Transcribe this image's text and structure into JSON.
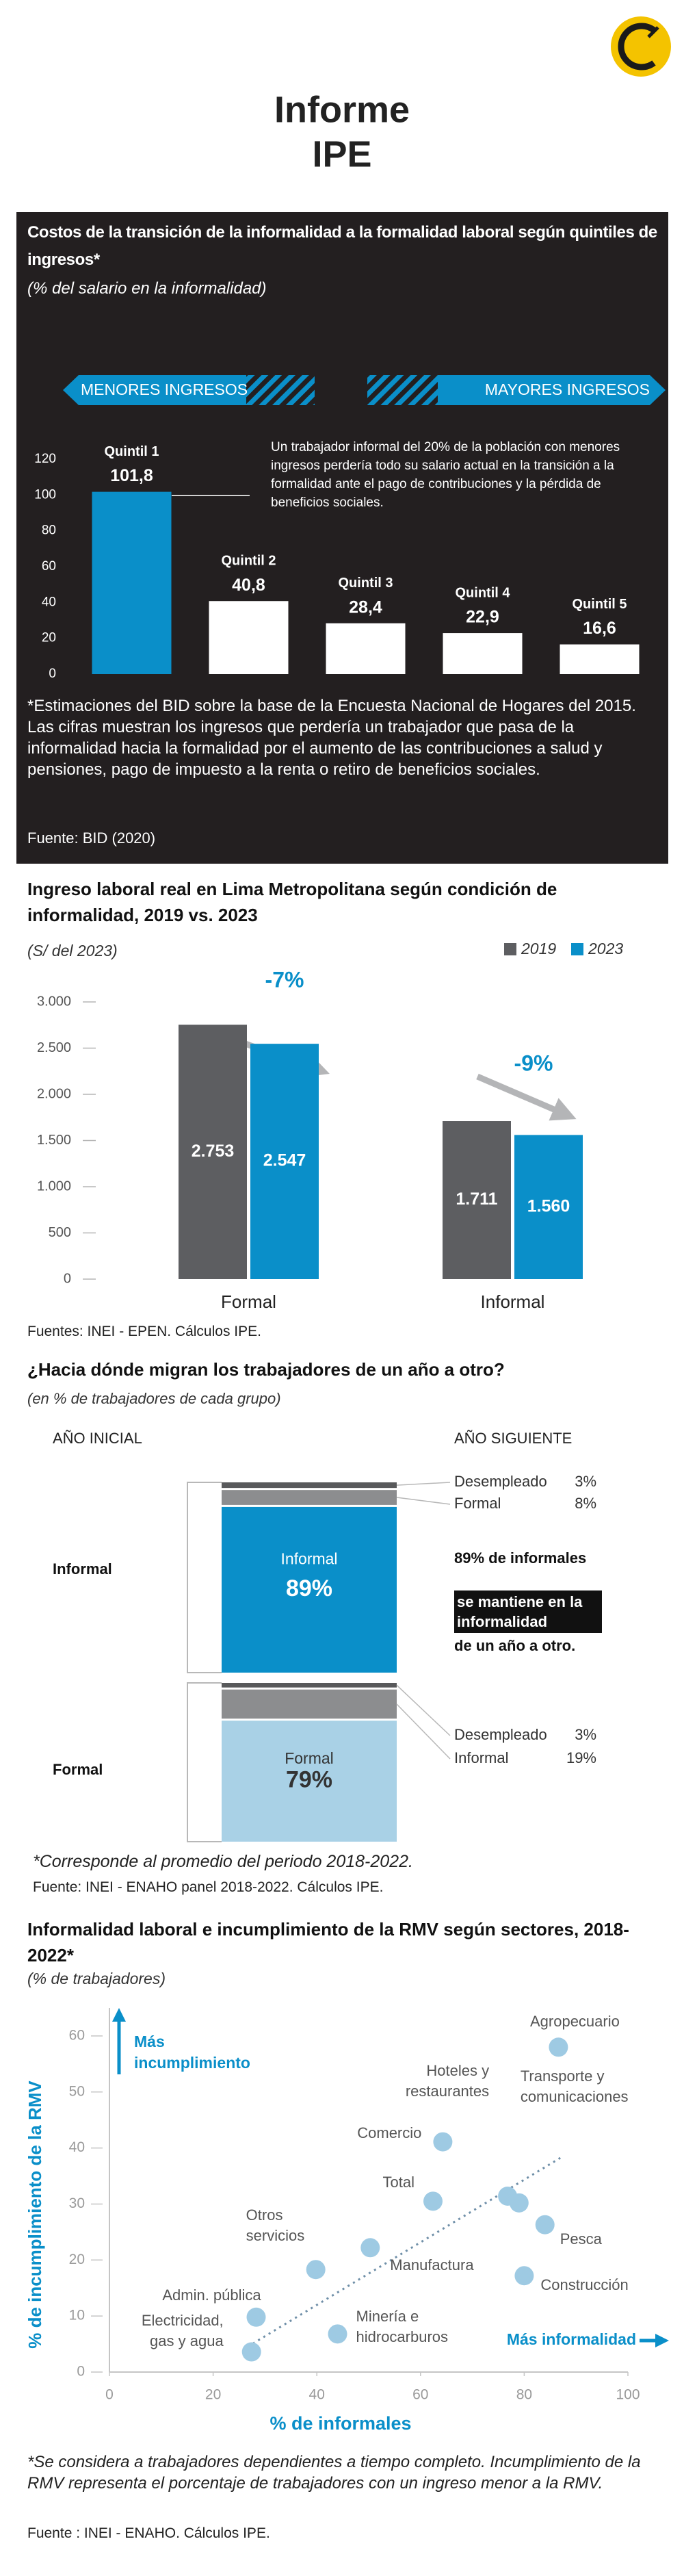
{
  "header": {
    "title_lines": [
      "Informe",
      "IPE"
    ]
  },
  "chart_data": [
    {
      "type": "bar",
      "title": "Costos de la transición de la informalidad a la formalidad laboral según quintiles de ingresos*",
      "subtitle": "(% del salario en la informalidad)",
      "arrow_labels": [
        "MENORES INGRESOS",
        "MAYORES INGRESOS"
      ],
      "categories": [
        "Quintil 1",
        "Quintil 2",
        "Quintil 3",
        "Quintil 4",
        "Quintil 5"
      ],
      "values": [
        101.8,
        40.8,
        28.4,
        22.9,
        16.6
      ],
      "value_labels": [
        "101,8",
        "40,8",
        "28,4",
        "22,9",
        "16,6"
      ],
      "colors": [
        "#0a8fc9",
        "#ffffff",
        "#ffffff",
        "#ffffff",
        "#ffffff"
      ],
      "ylim": [
        0,
        120
      ],
      "yticks": [
        0,
        20,
        40,
        60,
        80,
        100,
        120
      ],
      "grid": false,
      "annotation": "Un trabajador informal del 20% de la población con menores ingresos perdería todo su salario actual en la transición a la formalidad ante el pago de contribuciones y la pérdida de beneficios sociales.",
      "footnote": "*Estimaciones del BID sobre la base de la Encuesta Nacional de Hogares del 2015. Las cifras muestran los ingresos que perdería un trabajador que pasa de la informalidad hacia la formalidad por el aumento de las contribuciones a salud y pensiones, pago de impuesto a la renta o retiro de beneficios sociales.",
      "source": "Fuente: BID (2020)"
    },
    {
      "type": "grouped_bar",
      "title": "Ingreso laboral real en Lima Metropolitana según condición de informalidad, 2019 vs. 2023",
      "subtitle": "(S/ del 2023)",
      "categories": [
        "Formal",
        "Informal"
      ],
      "series": [
        {
          "name": "2019",
          "color": "#5d5e61",
          "values": [
            2753,
            1711
          ],
          "value_labels": [
            "2.753",
            "1.711"
          ]
        },
        {
          "name": "2023",
          "color": "#0a8fc9",
          "values": [
            2547,
            1560
          ],
          "value_labels": [
            "2.547",
            "1.560"
          ]
        }
      ],
      "ylim": [
        0,
        3000
      ],
      "yticks": [
        0,
        {
          "value": 500,
          "label": "500"
        },
        {
          "value": 1000,
          "label": "1.000"
        },
        {
          "value": 1500,
          "label": "1.500"
        },
        {
          "value": 2000,
          "label": "2.000"
        },
        {
          "value": 2500,
          "label": "2.500"
        },
        {
          "value": 3000,
          "label": "3.000"
        }
      ],
      "annotations": [
        "-7%",
        "-9%"
      ],
      "source": "Fuentes: INEI - EPEN. Cálculos IPE."
    },
    {
      "type": "flow",
      "title": "¿Hacia dónde migran los trabajadores de un año a otro?",
      "subtitle": "(en % de trabajadores de cada grupo)",
      "from_label": "AÑO INICIAL",
      "to_label": "AÑO SIGUIENTE",
      "groups": [
        {
          "name": "Informal",
          "categories": [
            "Desempleado",
            "Formal",
            "Informal"
          ],
          "values": [
            3,
            8,
            89
          ],
          "value_labels": [
            "3%",
            "8%",
            "89%"
          ],
          "colors": [
            "#58595b",
            "#8c8d8f",
            "#0a8fc9"
          ]
        },
        {
          "name": "Formal",
          "categories": [
            "Desempleado",
            "Informal",
            "Formal"
          ],
          "values": [
            3,
            19,
            79
          ],
          "value_labels": [
            "3%",
            "19%",
            "79%"
          ],
          "colors": [
            "#58595b",
            "#8c8d8f",
            "#a9d1e6"
          ]
        }
      ],
      "callout": [
        "89% de informales",
        "se mantiene en la informalidad",
        "de un año a otro."
      ],
      "footnote": "*Corresponde al promedio del periodo 2018-2022.",
      "source": "Fuente: INEI - ENAHO panel 2018-2022. Cálculos IPE."
    },
    {
      "type": "scatter",
      "title": "Informalidad laboral e incumplimiento de la RMV según sectores, 2018-2022*",
      "subtitle": "(% de trabajadores)",
      "x_label": "% de informales",
      "y_label": "% de incumplimiento de la RMV",
      "labels": [
        "Agropecuario",
        "Comercio",
        "Hoteles y restaurantes",
        "Transporte y comunicaciones",
        "Total",
        "Pesca",
        "Construcción",
        "Manufactura",
        "Otros servicios",
        "Admin. pública",
        "Minería e hidrocarburos",
        "Electricidad, gas y agua"
      ],
      "x": [
        86.6,
        64.3,
        76.8,
        79,
        62.4,
        84,
        80,
        50.3,
        39.8,
        28.3,
        44,
        27.4
      ],
      "values": [
        58,
        41.1,
        31.4,
        30.2,
        30.5,
        26.3,
        17.2,
        22.2,
        18.3,
        9.8,
        6.8,
        3.6
      ],
      "color": "#9ecae3",
      "xlim": [
        0,
        100
      ],
      "xticks": [
        0,
        20,
        40,
        60,
        80,
        100
      ],
      "ylim": [
        0,
        65
      ],
      "yticks": [
        0,
        10,
        20,
        30,
        40,
        50,
        60
      ],
      "annotations": [
        "Más incumplimiento",
        "Más informalidad"
      ],
      "footnote": "*Se considera a trabajadores dependientes a tiempo completo. Incumplimiento de la RMV representa el porcentaje de trabajadores con un ingreso menor a la RMV.",
      "source": "Fuente : INEI - ENAHO. Cálculos IPE."
    }
  ]
}
